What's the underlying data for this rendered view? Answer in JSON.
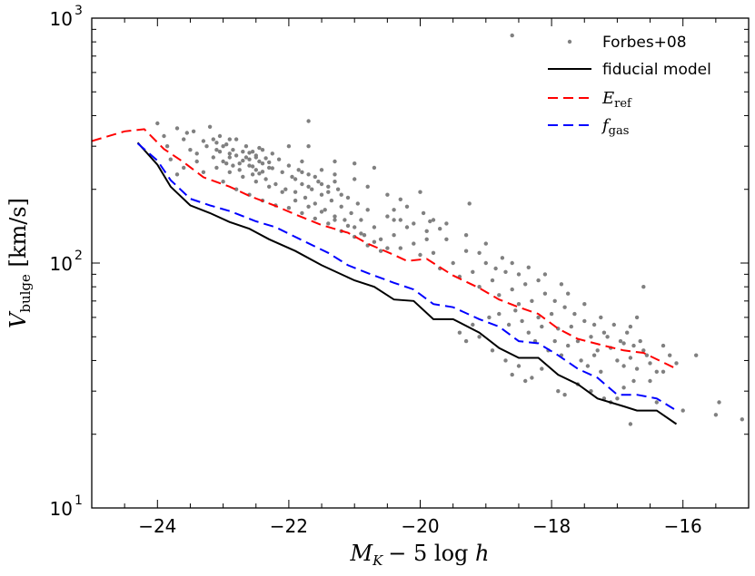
{
  "chart_data": {
    "type": "line",
    "xlabel": {
      "main": "M",
      "sub": "K",
      "rest": "− 5 log ",
      "var": "h"
    },
    "ylabel": {
      "main": "V",
      "sub": "bulge",
      "rest": " [km/s]"
    },
    "xlim": [
      -25.0,
      -15.0
    ],
    "ylim": [
      10,
      1000
    ],
    "yscale": "log",
    "x_ticks": [
      -24,
      -22,
      -20,
      -18,
      -16
    ],
    "x_tick_labels": [
      "−24",
      "−22",
      "−20",
      "−18",
      "−16"
    ],
    "y_ticks": [
      {
        "value": 10,
        "base": "10",
        "exp": "1"
      },
      {
        "value": 100,
        "base": "10",
        "exp": "2"
      },
      {
        "value": 1000,
        "base": "10",
        "exp": "3"
      }
    ],
    "legend": {
      "placement": "top-right",
      "entries": [
        {
          "label": "Forbes+08",
          "style": "points"
        },
        {
          "label": "fiducial model",
          "style": "solid"
        },
        {
          "label": "E",
          "sub": "ref",
          "style": "dashed-red"
        },
        {
          "label": "f",
          "sub": "gas",
          "style": "dashed-blue"
        }
      ]
    },
    "colors": {
      "points": "#808080",
      "fiducial": "#000000",
      "eref": "#ff0000",
      "fgas": "#0000ff"
    },
    "series": [
      {
        "name": "fiducial model",
        "x": [
          -24.3,
          -24.0,
          -23.8,
          -23.5,
          -23.2,
          -22.9,
          -22.6,
          -22.3,
          -21.9,
          -21.5,
          -21.0,
          -20.7,
          -20.4,
          -20.1,
          -19.8,
          -19.5,
          -19.1,
          -18.8,
          -18.5,
          -18.2,
          -17.9,
          -17.6,
          -17.3,
          -16.9,
          -16.7,
          -16.4,
          -16.1
        ],
        "y": [
          310,
          252,
          205,
          172,
          160,
          147,
          138,
          125,
          112,
          98,
          85,
          80,
          71,
          70,
          59,
          59,
          52,
          45,
          41,
          41,
          35,
          32,
          28,
          26,
          25,
          25,
          22
        ]
      },
      {
        "name": "E_ref",
        "x": [
          -25.0,
          -24.5,
          -24.2,
          -23.9,
          -23.6,
          -23.3,
          -22.9,
          -22.6,
          -22.2,
          -21.9,
          -21.5,
          -21.1,
          -20.8,
          -20.4,
          -20.2,
          -19.9,
          -19.5,
          -19.1,
          -18.8,
          -18.5,
          -18.2,
          -17.9,
          -17.6,
          -17.2,
          -16.9,
          -16.6,
          -16.1
        ],
        "y": [
          315,
          345,
          352,
          292,
          258,
          224,
          205,
          188,
          171,
          158,
          143,
          133,
          120,
          108,
          102,
          104,
          89,
          79,
          71,
          66,
          62,
          54,
          49,
          46,
          44,
          43,
          37
        ]
      },
      {
        "name": "f_gas",
        "x": [
          -24.3,
          -24.0,
          -23.8,
          -23.5,
          -23.2,
          -22.9,
          -22.5,
          -22.2,
          -21.8,
          -21.4,
          -21.1,
          -20.8,
          -20.4,
          -20.1,
          -19.8,
          -19.5,
          -19.1,
          -18.8,
          -18.5,
          -18.2,
          -17.9,
          -17.6,
          -17.3,
          -17.0,
          -16.7,
          -16.4,
          -16.1
        ],
        "y": [
          308,
          262,
          218,
          183,
          172,
          163,
          148,
          140,
          124,
          110,
          98,
          91,
          83,
          78,
          68,
          66,
          59,
          55,
          48,
          47,
          42,
          37,
          34,
          29,
          29,
          28,
          25
        ]
      }
    ],
    "scatter": {
      "name": "Forbes+08",
      "points": [
        [
          -24.0,
          372
        ],
        [
          -23.9,
          330
        ],
        [
          -23.85,
          300
        ],
        [
          -23.7,
          355
        ],
        [
          -23.6,
          320
        ],
        [
          -23.55,
          340
        ],
        [
          -23.5,
          290
        ],
        [
          -23.45,
          345
        ],
        [
          -23.4,
          280
        ],
        [
          -23.3,
          315
        ],
        [
          -23.25,
          300
        ],
        [
          -23.2,
          360
        ],
        [
          -23.15,
          270
        ],
        [
          -23.1,
          290
        ],
        [
          -23.05,
          330
        ],
        [
          -23.0,
          260
        ],
        [
          -22.95,
          305
        ],
        [
          -22.9,
          280
        ],
        [
          -22.85,
          250
        ],
        [
          -22.8,
          320
        ],
        [
          -22.75,
          240
        ],
        [
          -22.7,
          285
        ],
        [
          -22.65,
          300
        ],
        [
          -22.6,
          265
        ],
        [
          -22.55,
          230
        ],
        [
          -22.5,
          270
        ],
        [
          -22.45,
          295
        ],
        [
          -22.4,
          255
        ],
        [
          -22.35,
          220
        ],
        [
          -22.3,
          245
        ],
        [
          -22.25,
          280
        ],
        [
          -22.2,
          210
        ],
        [
          -22.15,
          265
        ],
        [
          -22.1,
          235
        ],
        [
          -22.05,
          200
        ],
        [
          -22.0,
          250
        ],
        [
          -21.95,
          225
        ],
        [
          -21.9,
          195
        ],
        [
          -21.85,
          240
        ],
        [
          -21.8,
          210
        ],
        [
          -21.75,
          185
        ],
        [
          -21.7,
          230
        ],
        [
          -21.65,
          200
        ],
        [
          -21.6,
          175
        ],
        [
          -21.55,
          215
        ],
        [
          -21.5,
          190
        ],
        [
          -21.45,
          165
        ],
        [
          -21.4,
          205
        ],
        [
          -21.35,
          180
        ],
        [
          -21.3,
          155
        ],
        [
          -21.25,
          200
        ],
        [
          -21.2,
          170
        ],
        [
          -21.15,
          150
        ],
        [
          -21.1,
          185
        ],
        [
          -21.05,
          160
        ],
        [
          -21.0,
          140
        ],
        [
          -20.95,
          175
        ],
        [
          -20.9,
          150
        ],
        [
          -20.85,
          130
        ],
        [
          -20.8,
          165
        ],
        [
          -20.7,
          140
        ],
        [
          -20.6,
          125
        ],
        [
          -20.5,
          155
        ],
        [
          -20.4,
          130
        ],
        [
          -20.3,
          115
        ],
        [
          -20.2,
          140
        ],
        [
          -20.1,
          120
        ],
        [
          -20.0,
          108
        ],
        [
          -19.9,
          135
        ],
        [
          -19.8,
          110
        ],
        [
          -19.7,
          95
        ],
        [
          -19.6,
          125
        ],
        [
          -19.5,
          100
        ],
        [
          -19.4,
          88
        ],
        [
          -19.3,
          112
        ],
        [
          -19.2,
          92
        ],
        [
          -19.1,
          80
        ],
        [
          -19.0,
          100
        ],
        [
          -18.9,
          85
        ],
        [
          -18.8,
          74
        ],
        [
          -18.7,
          92
        ],
        [
          -18.6,
          78
        ],
        [
          -18.5,
          68
        ],
        [
          -18.4,
          82
        ],
        [
          -18.3,
          70
        ],
        [
          -18.2,
          60
        ],
        [
          -18.1,
          75
        ],
        [
          -18.0,
          62
        ],
        [
          -17.9,
          54
        ],
        [
          -17.8,
          66
        ],
        [
          -17.7,
          55
        ],
        [
          -17.6,
          48
        ],
        [
          -17.5,
          58
        ],
        [
          -17.4,
          50
        ],
        [
          -17.3,
          44
        ],
        [
          -17.2,
          52
        ],
        [
          -17.1,
          45
        ],
        [
          -17.0,
          40
        ],
        [
          -16.9,
          47
        ],
        [
          -16.8,
          41
        ],
        [
          -16.7,
          37
        ],
        [
          -16.6,
          44
        ],
        [
          -16.5,
          39
        ],
        [
          -16.4,
          36
        ],
        [
          -23.8,
          265
        ],
        [
          -23.6,
          245
        ],
        [
          -23.3,
          235
        ],
        [
          -23.0,
          215
        ],
        [
          -22.8,
          200
        ],
        [
          -22.6,
          190
        ],
        [
          -22.4,
          180
        ],
        [
          -22.2,
          172
        ],
        [
          -22.0,
          168
        ],
        [
          -21.8,
          160
        ],
        [
          -21.6,
          152
        ],
        [
          -21.4,
          145
        ],
        [
          -21.2,
          135
        ],
        [
          -21.0,
          128
        ],
        [
          -20.8,
          118
        ],
        [
          -20.6,
          112
        ],
        [
          -23.7,
          230
        ],
        [
          -23.4,
          260
        ],
        [
          -23.1,
          245
        ],
        [
          -22.9,
          235
        ],
        [
          -22.7,
          225
        ],
        [
          -22.5,
          215
        ],
        [
          -22.3,
          205
        ],
        [
          -22.1,
          195
        ],
        [
          -21.9,
          180
        ],
        [
          -21.7,
          170
        ],
        [
          -21.5,
          162
        ],
        [
          -21.3,
          150
        ],
        [
          -21.1,
          142
        ],
        [
          -20.9,
          132
        ],
        [
          -20.7,
          122
        ],
        [
          -20.5,
          115
        ],
        [
          -22.5,
          275
        ],
        [
          -22.45,
          260
        ],
        [
          -22.55,
          285
        ],
        [
          -22.6,
          250
        ],
        [
          -22.4,
          290
        ],
        [
          -22.35,
          268
        ],
        [
          -22.5,
          240
        ],
        [
          -22.65,
          270
        ],
        [
          -22.3,
          258
        ],
        [
          -22.7,
          262
        ],
        [
          -22.45,
          232
        ],
        [
          -22.55,
          248
        ],
        [
          -22.25,
          244
        ],
        [
          -22.75,
          255
        ],
        [
          -22.6,
          282
        ],
        [
          -22.4,
          236
        ],
        [
          -23.0,
          300
        ],
        [
          -22.9,
          270
        ],
        [
          -23.1,
          310
        ],
        [
          -22.85,
          290
        ],
        [
          -23.05,
          285
        ],
        [
          -22.95,
          255
        ],
        [
          -23.15,
          320
        ],
        [
          -22.8,
          275
        ],
        [
          -21.9,
          220
        ],
        [
          -21.8,
          235
        ],
        [
          -21.7,
          205
        ],
        [
          -21.6,
          225
        ],
        [
          -21.5,
          210
        ],
        [
          -21.4,
          195
        ],
        [
          -21.3,
          215
        ],
        [
          -21.2,
          190
        ],
        [
          -20.4,
          165
        ],
        [
          -20.3,
          150
        ],
        [
          -20.2,
          170
        ],
        [
          -20.1,
          145
        ],
        [
          -19.95,
          160
        ],
        [
          -19.9,
          125
        ],
        [
          -19.85,
          148
        ],
        [
          -19.7,
          138
        ],
        [
          -21.5,
          240
        ],
        [
          -21.3,
          230
        ],
        [
          -21.0,
          220
        ],
        [
          -20.8,
          205
        ],
        [
          -20.5,
          190
        ],
        [
          -20.3,
          182
        ],
        [
          -20.0,
          195
        ],
        [
          -19.8,
          150
        ],
        [
          -22.0,
          300
        ],
        [
          -21.8,
          260
        ],
        [
          -21.7,
          300
        ],
        [
          -21.3,
          260
        ],
        [
          -21.0,
          255
        ],
        [
          -20.7,
          245
        ],
        [
          -19.6,
          145
        ],
        [
          -19.3,
          130
        ],
        [
          -19.25,
          175
        ],
        [
          -19.1,
          110
        ],
        [
          -19.0,
          120
        ],
        [
          -18.85,
          95
        ],
        [
          -18.75,
          105
        ],
        [
          -18.6,
          100
        ],
        [
          -18.5,
          90
        ],
        [
          -18.35,
          96
        ],
        [
          -18.2,
          85
        ],
        [
          -18.1,
          90
        ],
        [
          -17.95,
          70
        ],
        [
          -17.85,
          82
        ],
        [
          -17.75,
          75
        ],
        [
          -17.65,
          62
        ],
        [
          -17.5,
          68
        ],
        [
          -17.35,
          56
        ],
        [
          -17.25,
          60
        ],
        [
          -17.15,
          50
        ],
        [
          -17.05,
          56
        ],
        [
          -16.95,
          48
        ],
        [
          -16.85,
          52
        ],
        [
          -16.75,
          46
        ],
        [
          -16.65,
          48
        ],
        [
          -16.55,
          42
        ],
        [
          -18.95,
          60
        ],
        [
          -18.8,
          62
        ],
        [
          -18.65,
          56
        ],
        [
          -18.55,
          64
        ],
        [
          -18.45,
          58
        ],
        [
          -18.35,
          52
        ],
        [
          -18.25,
          48
        ],
        [
          -18.15,
          55
        ],
        [
          -18.05,
          44
        ],
        [
          -17.95,
          48
        ],
        [
          -17.85,
          42
        ],
        [
          -17.75,
          46
        ],
        [
          -17.55,
          40
        ],
        [
          -17.45,
          38
        ],
        [
          -17.35,
          42
        ],
        [
          -17.25,
          36
        ],
        [
          -19.4,
          52
        ],
        [
          -19.3,
          48
        ],
        [
          -19.2,
          56
        ],
        [
          -19.1,
          50
        ],
        [
          -18.9,
          44
        ],
        [
          -18.7,
          40
        ],
        [
          -18.5,
          38
        ],
        [
          -18.3,
          34
        ],
        [
          -18.6,
          35
        ],
        [
          -18.4,
          33
        ],
        [
          -18.15,
          37
        ],
        [
          -17.9,
          30
        ],
        [
          -17.8,
          29
        ],
        [
          -17.6,
          32
        ],
        [
          -17.4,
          30
        ],
        [
          -17.2,
          28
        ],
        [
          -17.1,
          27
        ],
        [
          -16.9,
          31
        ],
        [
          -16.8,
          22
        ],
        [
          -16.5,
          33
        ],
        [
          -16.4,
          27
        ],
        [
          -16.3,
          36
        ],
        [
          -16.2,
          42
        ],
        [
          -16.1,
          39
        ],
        [
          -16.6,
          80
        ],
        [
          -16.7,
          60
        ],
        [
          -16.8,
          55
        ],
        [
          -16.9,
          38
        ],
        [
          -16.3,
          46
        ],
        [
          -16.0,
          25
        ],
        [
          -15.8,
          42
        ],
        [
          -15.5,
          24
        ],
        [
          -15.45,
          27
        ],
        [
          -15.1,
          23
        ],
        [
          -17.0,
          28
        ],
        [
          -16.75,
          33
        ],
        [
          -18.6,
          850
        ],
        [
          -21.7,
          380
        ],
        [
          -22.9,
          320
        ],
        [
          -20.4,
          150
        ]
      ]
    }
  }
}
